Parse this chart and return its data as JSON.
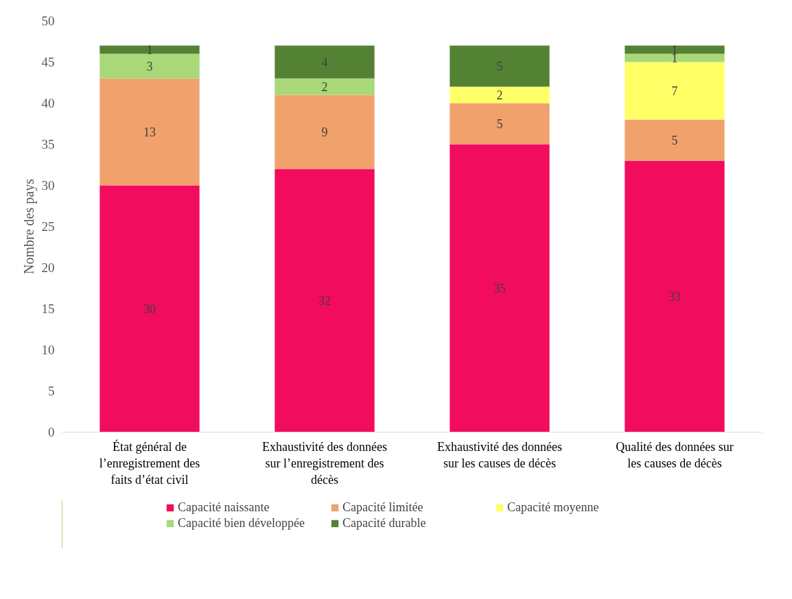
{
  "chart_data": {
    "type": "bar",
    "stacked": true,
    "ylabel": "Nombre des pays",
    "categories": [
      "État général de l’enregistrement des faits d’état civil",
      "Exhaustivité des données sur l’enregistrement des décès",
      "Exhaustivité des données sur les causes de décès",
      "Qualité des données sur les causes de décès"
    ],
    "series": [
      {
        "name": "Capacité naissante",
        "color": "#f20c5e",
        "values": [
          30,
          32,
          35,
          33
        ]
      },
      {
        "name": "Capacité limitée",
        "color": "#f0a16c",
        "values": [
          13,
          9,
          5,
          5
        ]
      },
      {
        "name": "Capacité moyenne",
        "color": "#ffff66",
        "values": [
          null,
          null,
          2,
          7
        ]
      },
      {
        "name": "Capacité bien développée",
        "color": "#a9d879",
        "values": [
          3,
          2,
          null,
          1
        ]
      },
      {
        "name": "Capacité durable",
        "color": "#548235",
        "values": [
          1,
          4,
          5,
          1
        ]
      }
    ],
    "ylim": [
      0,
      50
    ],
    "yticks": [
      0,
      5,
      10,
      15,
      20,
      25,
      30,
      35,
      40,
      45,
      50
    ],
    "data_labels": true,
    "legend": "bottom",
    "grid": false
  }
}
